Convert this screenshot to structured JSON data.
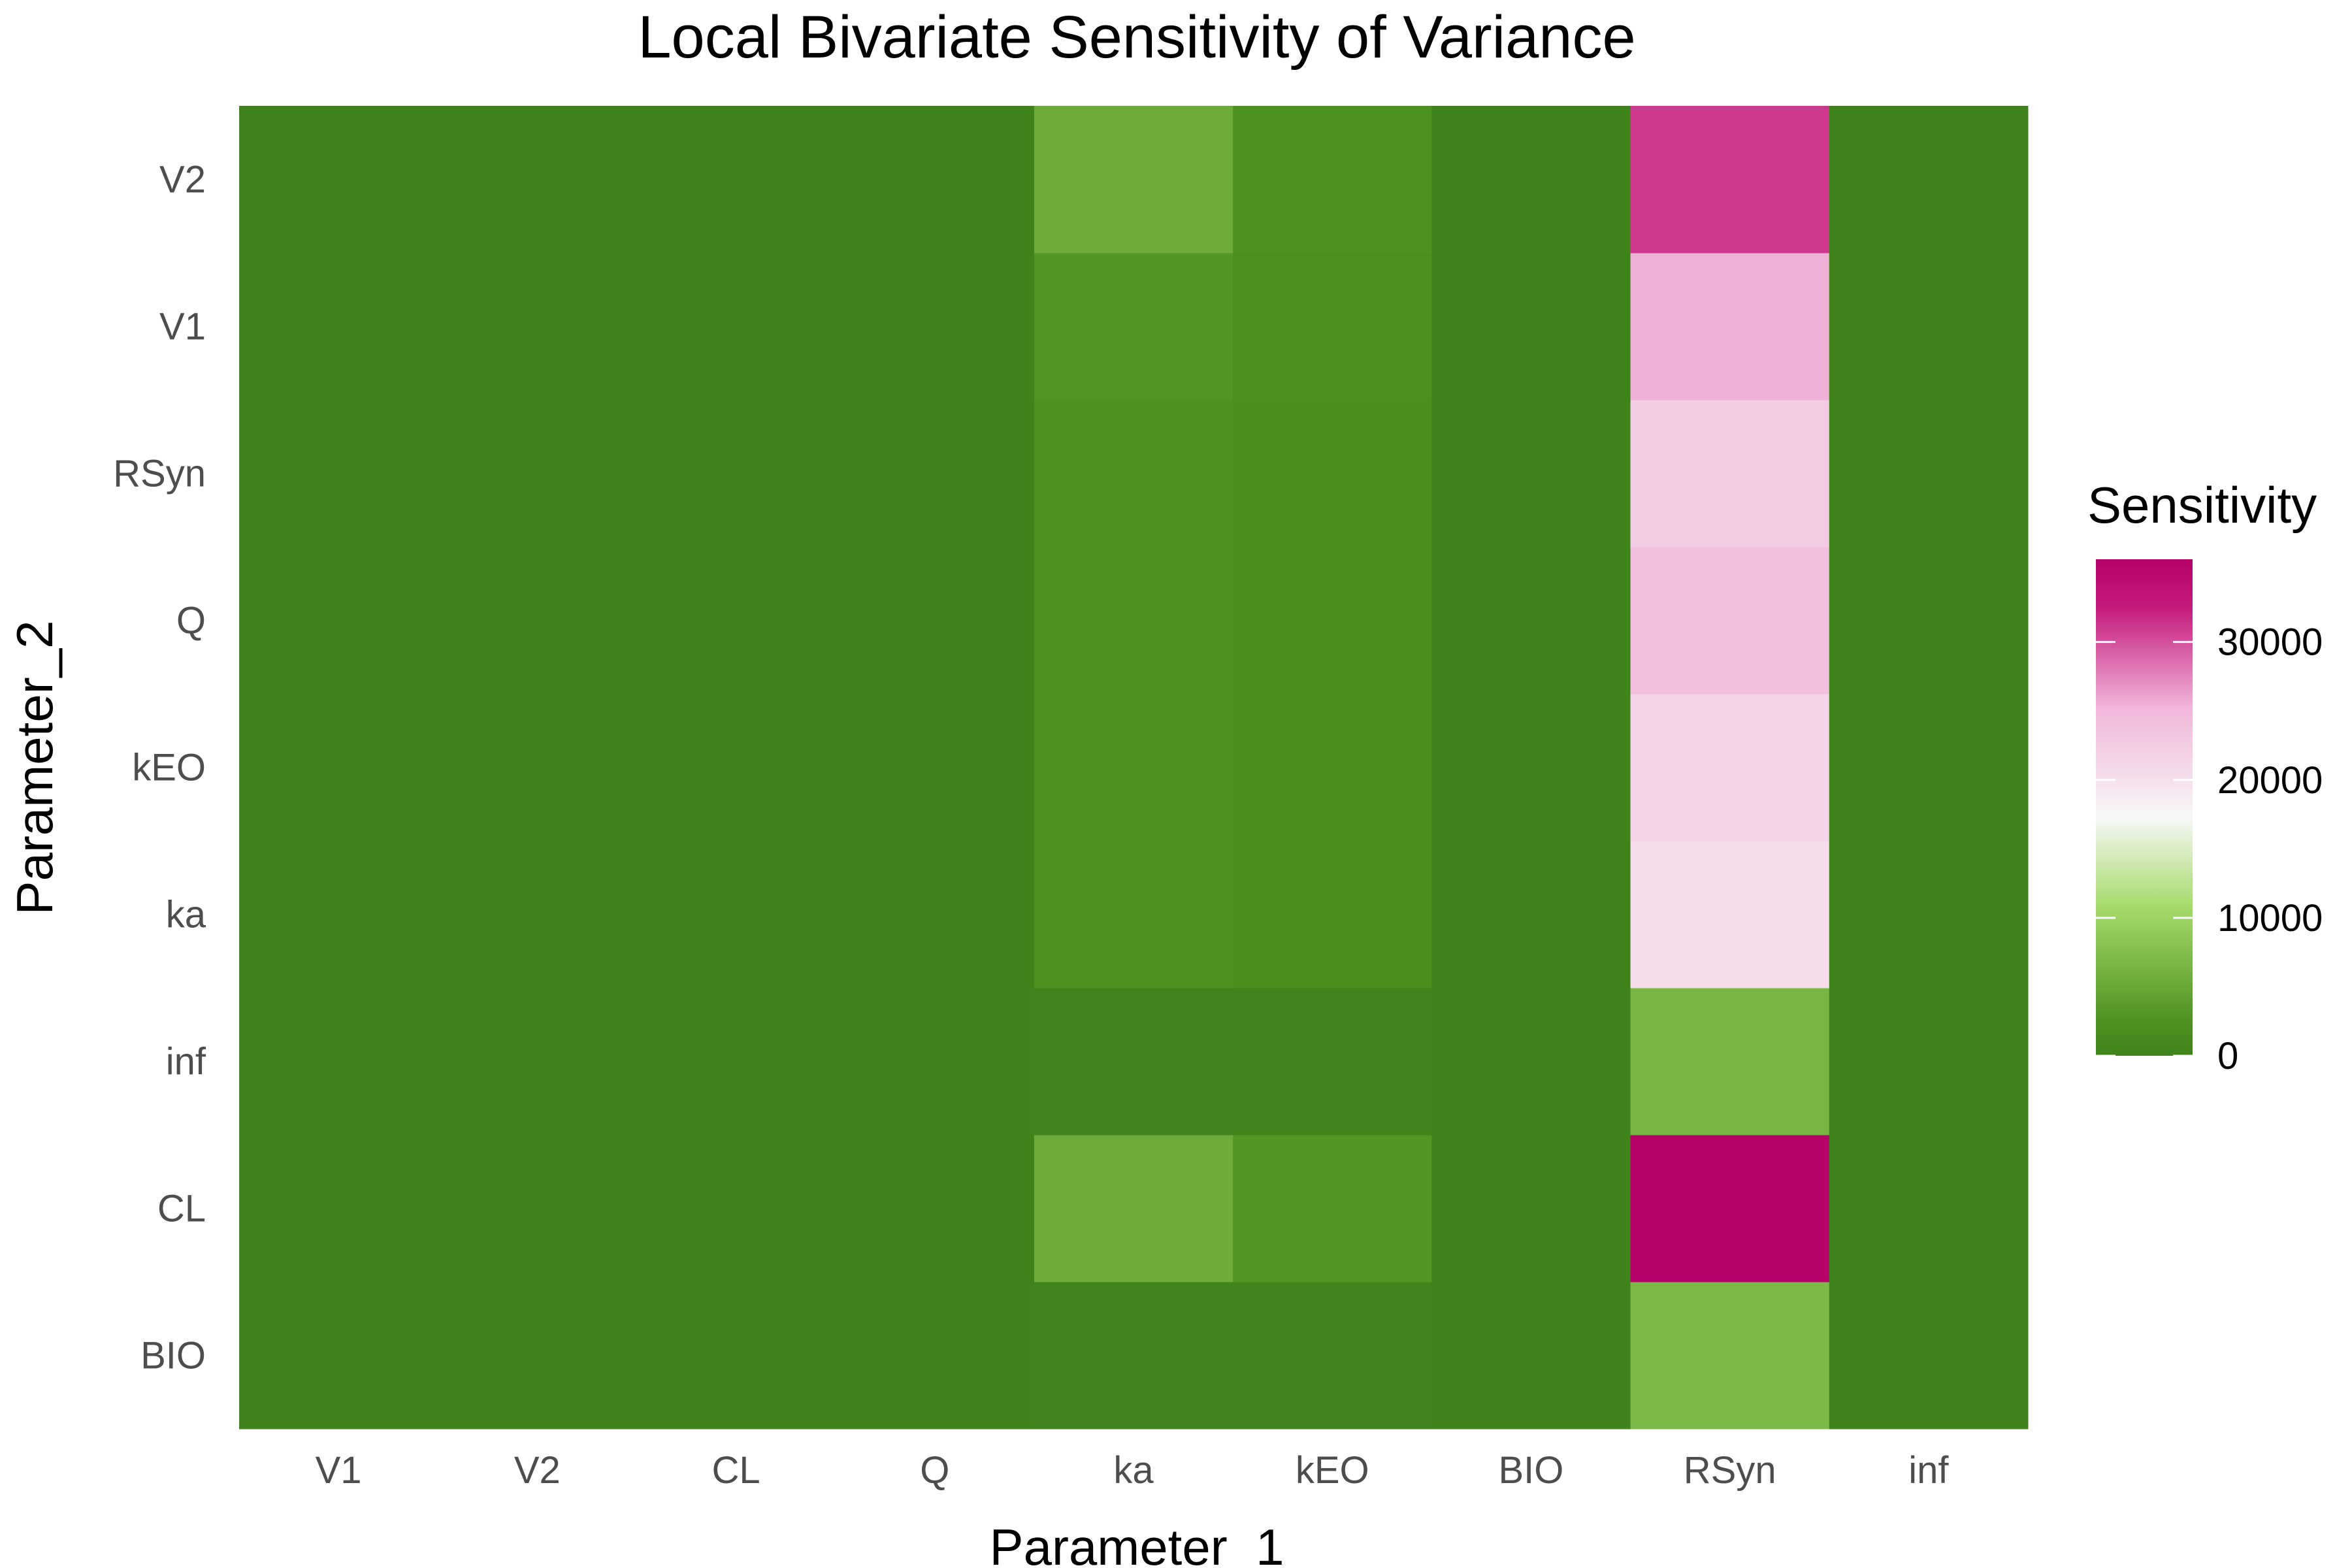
{
  "chart_data": {
    "type": "heatmap",
    "title": "Local Bivariate Sensitivity of Variance",
    "xlabel": "Parameter_1",
    "ylabel": "Parameter_2",
    "x_categories": [
      "V1",
      "V2",
      "CL",
      "Q",
      "ka",
      "kEO",
      "BIO",
      "RSyn",
      "inf"
    ],
    "y_categories": [
      "BIO",
      "CL",
      "inf",
      "ka",
      "kEO",
      "Q",
      "RSyn",
      "V1",
      "V2"
    ],
    "values": [
      [
        0,
        0,
        0,
        0,
        100,
        300,
        0,
        7000,
        0
      ],
      [
        0,
        0,
        0,
        0,
        5500,
        3000,
        0,
        36000,
        0
      ],
      [
        0,
        0,
        0,
        0,
        100,
        200,
        0,
        6500,
        0
      ],
      [
        0,
        0,
        0,
        0,
        2500,
        1800,
        0,
        20500,
        0
      ],
      [
        0,
        0,
        0,
        0,
        2500,
        1800,
        0,
        21500,
        0
      ],
      [
        0,
        0,
        0,
        0,
        2500,
        1800,
        0,
        24000,
        0
      ],
      [
        0,
        0,
        0,
        0,
        2500,
        1800,
        0,
        22500,
        0
      ],
      [
        0,
        0,
        0,
        0,
        3000,
        2000,
        0,
        25500,
        0
      ],
      [
        0,
        0,
        0,
        0,
        5500,
        2500,
        0,
        31000,
        0
      ]
    ],
    "legend": {
      "title": "Sensitivity",
      "ticks": [
        0,
        10000,
        20000,
        30000
      ],
      "tick_labels": [
        "0",
        "10000",
        "20000",
        "30000"
      ],
      "range": [
        0,
        36000
      ],
      "placement": "right"
    },
    "colors": {
      "low": "#3f841b",
      "lowmid": "#4d9221",
      "mid_green": "#a6db6a",
      "mid": "#f7f7f7",
      "mid_pink": "#f1b6da",
      "high": "#c51b7d",
      "max": "#b5016a"
    },
    "grid": false
  }
}
